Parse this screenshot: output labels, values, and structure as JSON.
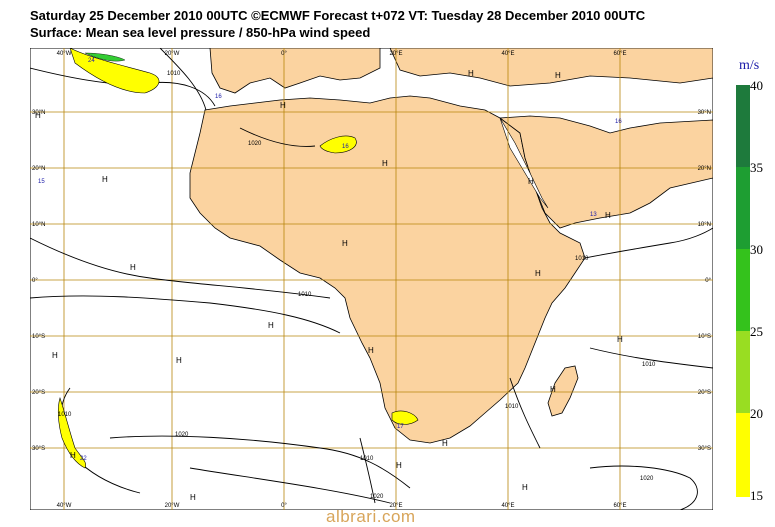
{
  "header": {
    "line1": "Saturday 25 December 2010 00UTC ©ECMWF Forecast t+072 VT: Tuesday 28 December 2010 00UTC",
    "line2": "Surface: Mean sea level pressure / 850-hPa wind speed"
  },
  "map": {
    "lon_labels": [
      "40°W",
      "20°W",
      "0°",
      "20°E",
      "40°E",
      "60°E"
    ],
    "lat_labels": [
      "30°N",
      "20°N",
      "10°N",
      "0°",
      "10°S",
      "20°S",
      "30°S"
    ],
    "highs": [
      "H",
      "H",
      "H",
      "H",
      "H",
      "H",
      "H",
      "H",
      "H",
      "H",
      "H",
      "H",
      "H",
      "H",
      "H",
      "H",
      "H",
      "H",
      "H",
      "H",
      "H",
      "H"
    ],
    "isobar_labels": [
      "1010",
      "1020",
      "1010",
      "1010",
      "1010",
      "1020",
      "1010",
      "1020",
      "1020",
      "1010",
      "1010"
    ],
    "wind_labels": [
      "24",
      "16",
      "16",
      "16",
      "15",
      "13",
      "17",
      "22"
    ],
    "colors": {
      "land": "#fbd3a0",
      "sea": "#ffffff",
      "grid": "#b8860b",
      "isobar": "#000000",
      "wind_yellow": "#ffff00",
      "wind_green": "#33cc33"
    }
  },
  "legend": {
    "unit": "m/s",
    "ticks": [
      "40",
      "35",
      "30",
      "25",
      "20",
      "15"
    ],
    "colors": [
      "#1e7a3c",
      "#1e9e32",
      "#34c21c",
      "#99dd22",
      "#ffff00"
    ]
  },
  "watermark": "albrari.com"
}
